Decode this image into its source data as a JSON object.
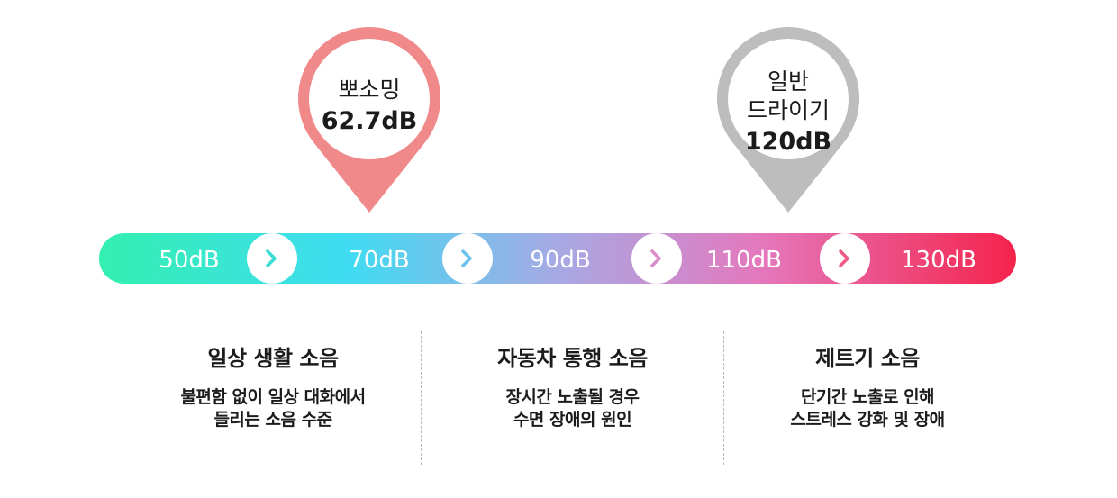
{
  "pins": [
    {
      "label": "뽀소밍",
      "value": "62.7dB",
      "color": "#f08a8a"
    },
    {
      "label_lines": [
        "일반",
        "드라이기"
      ],
      "value": "120dB",
      "color": "#bdbdbd"
    }
  ],
  "scale": {
    "labels": [
      "50dB",
      "70dB",
      "90dB",
      "110dB",
      "130dB"
    ],
    "arrow_glyph": "›",
    "gradient": [
      "#33f0b0",
      "#3fdcf2",
      "#a7a9e4",
      "#e478bd",
      "#f5234c"
    ]
  },
  "columns": [
    {
      "title": "일상 생활 소음",
      "lines": [
        "불편함 없이 일상 대화에서",
        "들리는 소음 수준"
      ]
    },
    {
      "title": "자동차 통행 소음",
      "lines": [
        "장시간 노출될 경우",
        "수면 장애의 원인"
      ]
    },
    {
      "title": "제트기 소음",
      "lines": [
        "단기간 노출로 인해",
        "스트레스 강화 및  장애"
      ]
    }
  ]
}
